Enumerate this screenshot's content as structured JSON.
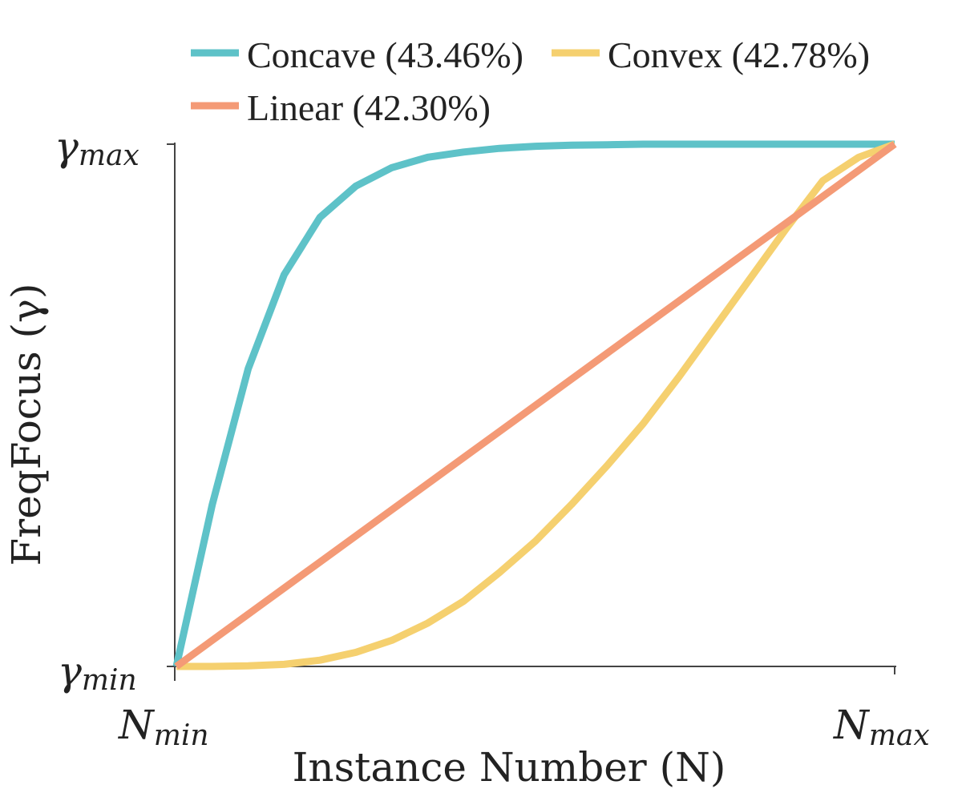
{
  "chart_data": {
    "type": "line",
    "xlabel": "Instance Number (N)",
    "ylabel": "FreqFocus (γ)",
    "x_ticks": [
      {
        "base": "N",
        "sub": "min"
      },
      {
        "base": "N",
        "sub": "max"
      }
    ],
    "y_ticks": [
      {
        "base": "γ",
        "sub": "max"
      },
      {
        "base": "γ",
        "sub": "min"
      }
    ],
    "xlim": [
      0,
      1
    ],
    "ylim": [
      0,
      1
    ],
    "legend_position": "top",
    "x": [
      0.0,
      0.05,
      0.1,
      0.15,
      0.2,
      0.25,
      0.3,
      0.35,
      0.4,
      0.45,
      0.5,
      0.55,
      0.6,
      0.65,
      0.7,
      0.75,
      0.8,
      0.85,
      0.9,
      0.95,
      1.0
    ],
    "series": [
      {
        "name": "Concave (43.46%)",
        "color": "#5ec2c8",
        "values": [
          0.0,
          0.31,
          0.57,
          0.75,
          0.86,
          0.92,
          0.955,
          0.975,
          0.985,
          0.992,
          0.996,
          0.998,
          0.999,
          1.0,
          1.0,
          1.0,
          1.0,
          1.0,
          1.0,
          1.0,
          1.0
        ]
      },
      {
        "name": "Convex (42.78%)",
        "color": "#f5d06f",
        "values": [
          0.0,
          0.0,
          0.001,
          0.004,
          0.012,
          0.027,
          0.05,
          0.083,
          0.125,
          0.18,
          0.24,
          0.31,
          0.385,
          0.465,
          0.555,
          0.65,
          0.745,
          0.84,
          0.93,
          0.975,
          1.0
        ]
      },
      {
        "name": "Linear (42.30%)",
        "color": "#f49a76",
        "values": [
          0.0,
          0.05,
          0.1,
          0.15,
          0.2,
          0.25,
          0.3,
          0.35,
          0.4,
          0.45,
          0.5,
          0.55,
          0.6,
          0.65,
          0.7,
          0.75,
          0.8,
          0.85,
          0.9,
          0.95,
          1.0
        ]
      }
    ]
  }
}
